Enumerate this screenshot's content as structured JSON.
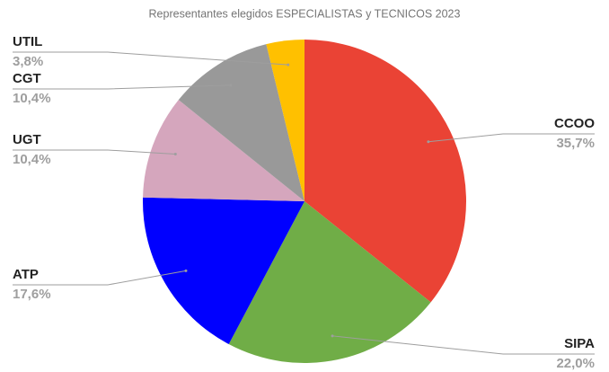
{
  "chart_data": {
    "type": "pie",
    "title": "Representantes elegidos ESPECIALISTAS y TECNICOS 2023",
    "categories": [
      "CCOO",
      "SIPA",
      "ATP",
      "UGT",
      "CGT",
      "UTIL"
    ],
    "values": [
      35.7,
      22.0,
      17.6,
      10.4,
      10.4,
      3.8
    ],
    "value_labels": [
      "35,7%",
      "22,0%",
      "17,6%",
      "10,4%",
      "10,4%",
      "3,8%"
    ],
    "colors": [
      "#ea4335",
      "#70ad47",
      "#0000ff",
      "#d5a6bd",
      "#999999",
      "#ffc000"
    ]
  }
}
